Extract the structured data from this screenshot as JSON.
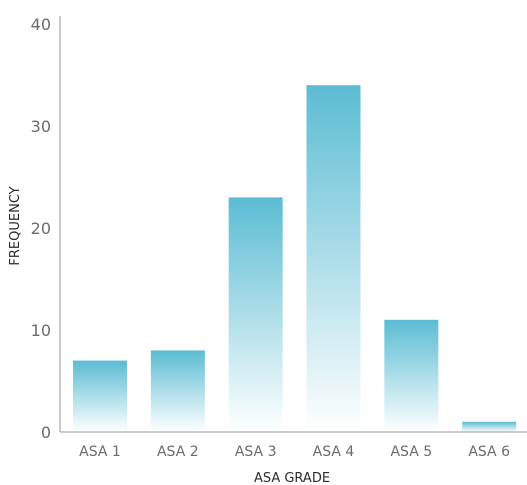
{
  "chart_data": {
    "type": "bar",
    "categories": [
      "ASA 1",
      "ASA 2",
      "ASA 3",
      "ASA 4",
      "ASA 5",
      "ASA 6"
    ],
    "values": [
      7,
      8,
      23,
      34,
      11,
      1
    ],
    "xlabel": "ASA GRADE",
    "ylabel": "FREQUENCY",
    "ylim": [
      0,
      40
    ],
    "yticks": [
      0,
      10,
      20,
      30,
      40
    ],
    "grid": false,
    "bar_color_top": "#5bbcd3",
    "bar_color_bottom": "#ffffff"
  }
}
